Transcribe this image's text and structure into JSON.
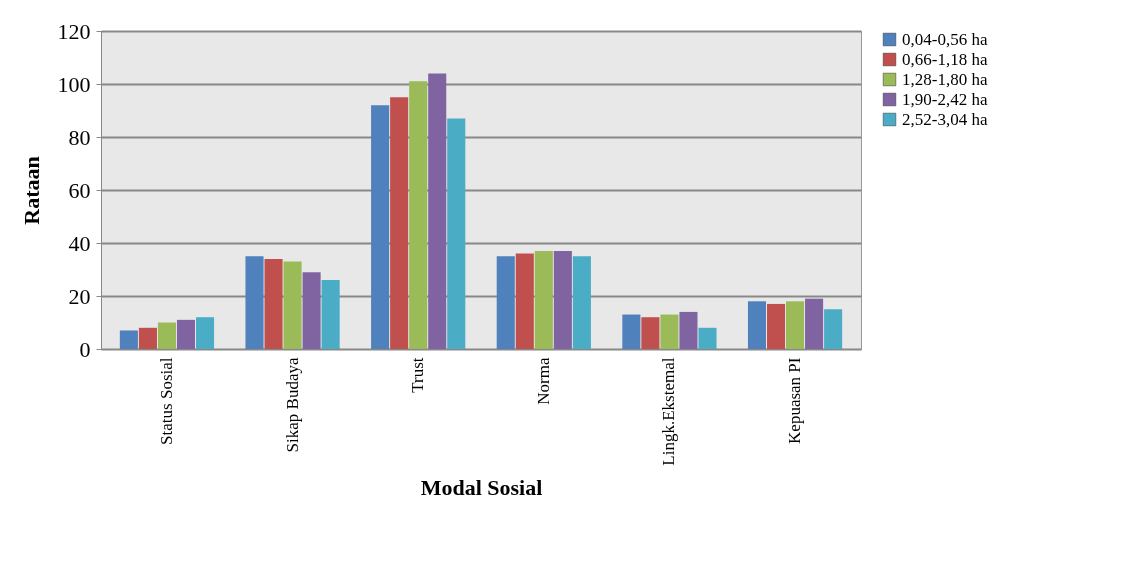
{
  "chart_data": {
    "type": "bar",
    "xlabel": "Modal Sosial",
    "ylabel": "Rataan",
    "categories": [
      "Status Sosial",
      "Sikap Budaya",
      "Trust",
      "Norma",
      "Lingk.Ekstemal",
      "Kepuasan PI"
    ],
    "series": [
      {
        "name": "0,04-0,56 ha",
        "color": "#4f81bd",
        "values": [
          7,
          35,
          92,
          35,
          13,
          18
        ]
      },
      {
        "name": "0,66-1,18 ha",
        "color": "#c0504d",
        "values": [
          8,
          34,
          95,
          36,
          12,
          17
        ]
      },
      {
        "name": "1,28-1,80 ha",
        "color": "#9bbb59",
        "values": [
          10,
          33,
          101,
          37,
          13,
          18
        ]
      },
      {
        "name": "1,90-2,42 ha",
        "color": "#8064a2",
        "values": [
          11,
          29,
          104,
          37,
          14,
          19
        ]
      },
      {
        "name": "2,52-3,04 ha",
        "color": "#4bacc6",
        "values": [
          12,
          26,
          87,
          35,
          8,
          15
        ]
      }
    ],
    "ylim": [
      0,
      120
    ],
    "yticks": [
      0,
      20,
      40,
      60,
      80,
      100,
      120
    ],
    "grid": "y",
    "legend": "right"
  }
}
